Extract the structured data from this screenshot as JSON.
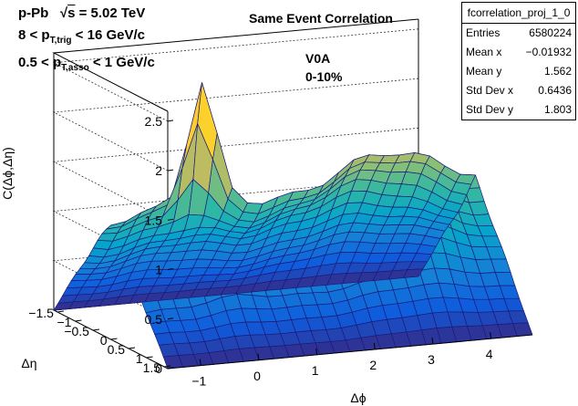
{
  "title": "Same Event Correlation",
  "annotations": {
    "system": "p-Pb",
    "energy": "= 5.02 TeV",
    "trig_lo": "8 < p",
    "trig_sub": "T,trig",
    "trig_hi": "< 16 GeV/c",
    "asso_lo": "0.5 < p",
    "asso_sub": "T,asso",
    "asso_hi": "< 1 GeV/c",
    "detector": "V0A",
    "centrality": "0-10%"
  },
  "stats": {
    "name": "fcorrelation_proj_1_0",
    "rows": [
      {
        "label": "Entries",
        "value": "6580224"
      },
      {
        "label": "Mean x",
        "value": "−0.01932"
      },
      {
        "label": "Mean y",
        "value": "1.562"
      },
      {
        "label": "Std Dev x",
        "value": "0.6436"
      },
      {
        "label": "Std Dev y",
        "value": "1.803"
      }
    ]
  },
  "chart_data": {
    "type": "surface",
    "title": "Same Event Correlation",
    "xlabel": "Δϕ",
    "ylabel": "Δη",
    "zlabel": "C(Δϕ,Δη)",
    "xlim": [
      -1.5708,
      4.7124
    ],
    "ylim": [
      -1.6,
      1.6
    ],
    "zlim": [
      0,
      2.6
    ],
    "x_ticks": [
      -1,
      0,
      1,
      2,
      3,
      4
    ],
    "y_ticks": [
      -1.5,
      -1,
      -0.5,
      0,
      0.5,
      1,
      1.5
    ],
    "z_ticks": [
      0,
      0.5,
      1,
      1.5,
      2,
      2.5
    ],
    "colormap": [
      "#352a87",
      "#0f5cdd",
      "#1481d6",
      "#06a4ca",
      "#2eb7a4",
      "#87bf77",
      "#d1bb59",
      "#fec832",
      "#f9fb0e"
    ],
    "mesh_color": "#1a1a7a",
    "near_side_peak": {
      "dphi": 0,
      "deta": 0,
      "height": 2.3
    },
    "away_side_ridge_height": 1.65,
    "baseline_height": 1.2,
    "eta_acceptance_edge": 1.6
  }
}
